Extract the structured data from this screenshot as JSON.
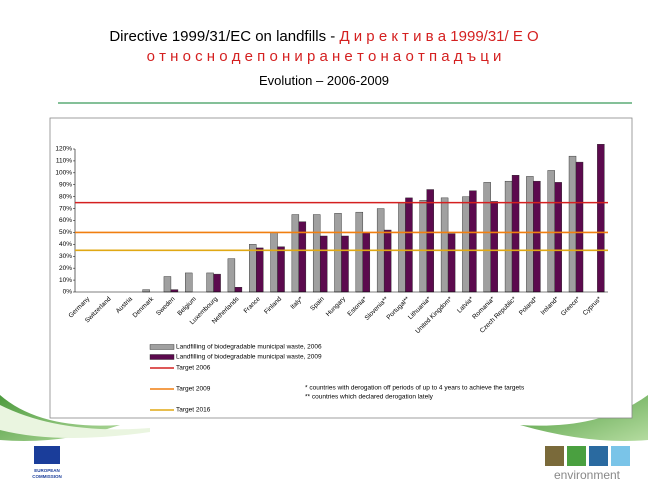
{
  "slide": {
    "title": "Directive 1999/31/EC on landfills -",
    "title_bg": "Д и р е к т и в а 1999/31/ Е О",
    "title_bg_line2": "о т н о с н о д е п о н и р а н е т о н а о т п а д ъ ц и",
    "subtitle": "Evolution – 2006-2009",
    "eu_logo": [
      "EUROPEAN",
      "COMMISSION"
    ],
    "env_logo": "environment"
  },
  "chart_data": {
    "type": "bar",
    "categories": [
      "Germany",
      "Switzerland",
      "Austria",
      "Denmark",
      "Sweden",
      "Belgium",
      "Luxembourg",
      "Netherlands",
      "France",
      "Finland",
      "Italy*",
      "Spain",
      "Hungary",
      "Estonia*",
      "Slovenia**",
      "Portugal**",
      "Lithuania*",
      "United Kingdom*",
      "Latvia*",
      "Romania*",
      "Czech Republic*",
      "Poland*",
      "Ireland*",
      "Greece*",
      "Cyprus*"
    ],
    "series": [
      {
        "name": "Landfilling of biodegradable municipal waste, 2006",
        "color": "#a0a0a0",
        "values": [
          0,
          0,
          0,
          2,
          13,
          16,
          16,
          28,
          40,
          50,
          65,
          65,
          66,
          67,
          70,
          75,
          77,
          79,
          80,
          92,
          93,
          97,
          102,
          114,
          null
        ]
      },
      {
        "name": "Landfilling of biodegradable municipal waste, 2009",
        "color": "#5c0a4e",
        "values": [
          0,
          0,
          0,
          0,
          2,
          0,
          15,
          4,
          37,
          38,
          59,
          47,
          47,
          50,
          52,
          79,
          86,
          49,
          85,
          76,
          98,
          93,
          92,
          109,
          124
        ]
      }
    ],
    "targets": [
      {
        "name": "Target 2006",
        "color": "#d42020",
        "value": 75
      },
      {
        "name": "Target 2009",
        "color": "#f07f10",
        "value": 50
      },
      {
        "name": "Target 2016",
        "color": "#e0a814",
        "value": 35
      }
    ],
    "notes": [
      "* countries with derogation off periods of up to 4 years to achieve the targets",
      "** countries which declared derogation lately"
    ],
    "ylim": [
      0,
      120
    ],
    "yticks": [
      {
        "value": 0,
        "label": "0%"
      },
      {
        "value": 10,
        "label": "10%"
      },
      {
        "value": 20,
        "label": "20%"
      },
      {
        "value": 30,
        "label": "30%"
      },
      {
        "value": 40,
        "label": "40%"
      },
      {
        "value": 50,
        "label": "50%"
      },
      {
        "value": 60,
        "label": "60%"
      },
      {
        "value": 70,
        "label": "70%"
      },
      {
        "value": 80,
        "label": "80%"
      },
      {
        "value": 90,
        "label": "90%"
      },
      {
        "value": 100,
        "label": "100%"
      },
      {
        "value": 110,
        "label": "110%"
      },
      {
        "value": 120,
        "label": "120%"
      }
    ]
  }
}
